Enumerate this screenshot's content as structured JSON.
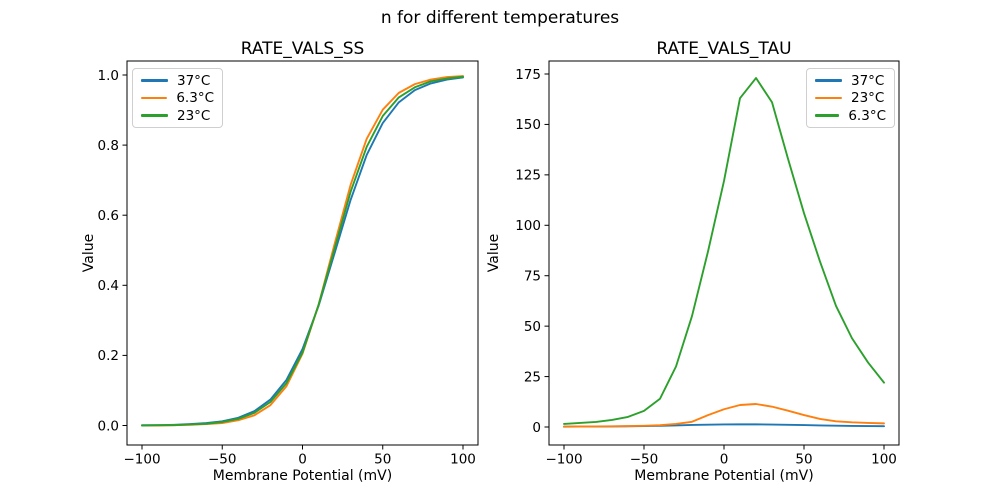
{
  "figure": {
    "suptitle": "n for different temperatures",
    "background": "#ffffff",
    "text_color": "#000000"
  },
  "palette": {
    "blue": "#1f77b4",
    "orange": "#ff7f0e",
    "green": "#2ca02c"
  },
  "chart_data": [
    {
      "type": "line",
      "title": "RATE_VALS_SS",
      "xlabel": "Membrane Potential (mV)",
      "ylabel": "Value",
      "legend_position": "upper left",
      "grid": false,
      "xlim": [
        -109.3,
        109.3
      ],
      "ylim": [
        -0.057,
        1.04
      ],
      "x": [
        -100,
        -90,
        -80,
        -70,
        -60,
        -50,
        -40,
        -30,
        -20,
        -10,
        0,
        10,
        20,
        30,
        40,
        50,
        60,
        70,
        80,
        90,
        100
      ],
      "xticks": {
        "values": [
          -100,
          -50,
          0,
          50,
          100
        ],
        "labels": [
          "−100",
          "−50",
          "0",
          "50",
          "100"
        ]
      },
      "yticks": {
        "values": [
          0,
          0.2,
          0.4,
          0.6,
          0.8,
          1.0
        ],
        "labels": [
          "0.0",
          "0.2",
          "0.4",
          "0.6",
          "0.8",
          "1.0"
        ]
      },
      "series": [
        {
          "name": "37°C",
          "color": "#1f77b4",
          "values": [
            0.001,
            0.001,
            0.002,
            0.004,
            0.007,
            0.012,
            0.022,
            0.041,
            0.074,
            0.13,
            0.218,
            0.341,
            0.492,
            0.644,
            0.772,
            0.863,
            0.922,
            0.957,
            0.976,
            0.987,
            0.993
          ]
        },
        {
          "name": "6.3°C",
          "color": "#ff7f0e",
          "values": [
            0.0,
            0.0,
            0.001,
            0.002,
            0.004,
            0.007,
            0.015,
            0.029,
            0.058,
            0.112,
            0.205,
            0.344,
            0.518,
            0.687,
            0.818,
            0.901,
            0.949,
            0.974,
            0.987,
            0.994,
            0.997
          ]
        },
        {
          "name": "23°C",
          "color": "#2ca02c",
          "values": [
            0.0,
            0.001,
            0.001,
            0.003,
            0.005,
            0.01,
            0.019,
            0.036,
            0.067,
            0.121,
            0.208,
            0.344,
            0.505,
            0.667,
            0.795,
            0.883,
            0.936,
            0.965,
            0.982,
            0.99,
            0.995
          ]
        }
      ]
    },
    {
      "type": "line",
      "title": "RATE_VALS_TAU",
      "xlabel": "Membrane Potential (mV)",
      "ylabel": "Value",
      "legend_position": "upper right",
      "grid": false,
      "xlim": [
        -109.3,
        109.3
      ],
      "ylim": [
        -8.4,
        181.5
      ],
      "x": [
        -100,
        -90,
        -80,
        -70,
        -60,
        -50,
        -40,
        -30,
        -20,
        -10,
        0,
        10,
        20,
        30,
        40,
        50,
        60,
        70,
        80,
        90,
        100
      ],
      "xticks": {
        "values": [
          -100,
          -50,
          0,
          50,
          100
        ],
        "labels": [
          "−100",
          "−50",
          "0",
          "50",
          "100"
        ]
      },
      "yticks": {
        "values": [
          0,
          25,
          50,
          75,
          100,
          125,
          150,
          175
        ],
        "labels": [
          "0",
          "25",
          "50",
          "75",
          "100",
          "125",
          "150",
          "175"
        ]
      },
      "series": [
        {
          "name": "37°C",
          "color": "#1f77b4",
          "values": [
            0.15,
            0.2,
            0.25,
            0.3,
            0.35,
            0.45,
            0.6,
            0.8,
            1.0,
            1.15,
            1.25,
            1.3,
            1.3,
            1.2,
            1.1,
            0.95,
            0.8,
            0.65,
            0.55,
            0.45,
            0.4
          ]
        },
        {
          "name": "23°C",
          "color": "#ff7f0e",
          "values": [
            0.2,
            0.25,
            0.3,
            0.35,
            0.45,
            0.6,
            0.9,
            1.5,
            2.6,
            5.9,
            8.8,
            10.9,
            11.4,
            10.1,
            8.1,
            5.9,
            4.0,
            2.8,
            2.3,
            2.0,
            1.8
          ]
        },
        {
          "name": "6.3°C",
          "color": "#2ca02c",
          "values": [
            1.5,
            2.0,
            2.5,
            3.5,
            5.0,
            8.0,
            14.0,
            30.0,
            55.0,
            87.0,
            122.0,
            163.0,
            173.0,
            161.0,
            133.0,
            106.0,
            82.0,
            60.0,
            44.0,
            32.0,
            22.0
          ]
        }
      ]
    }
  ]
}
